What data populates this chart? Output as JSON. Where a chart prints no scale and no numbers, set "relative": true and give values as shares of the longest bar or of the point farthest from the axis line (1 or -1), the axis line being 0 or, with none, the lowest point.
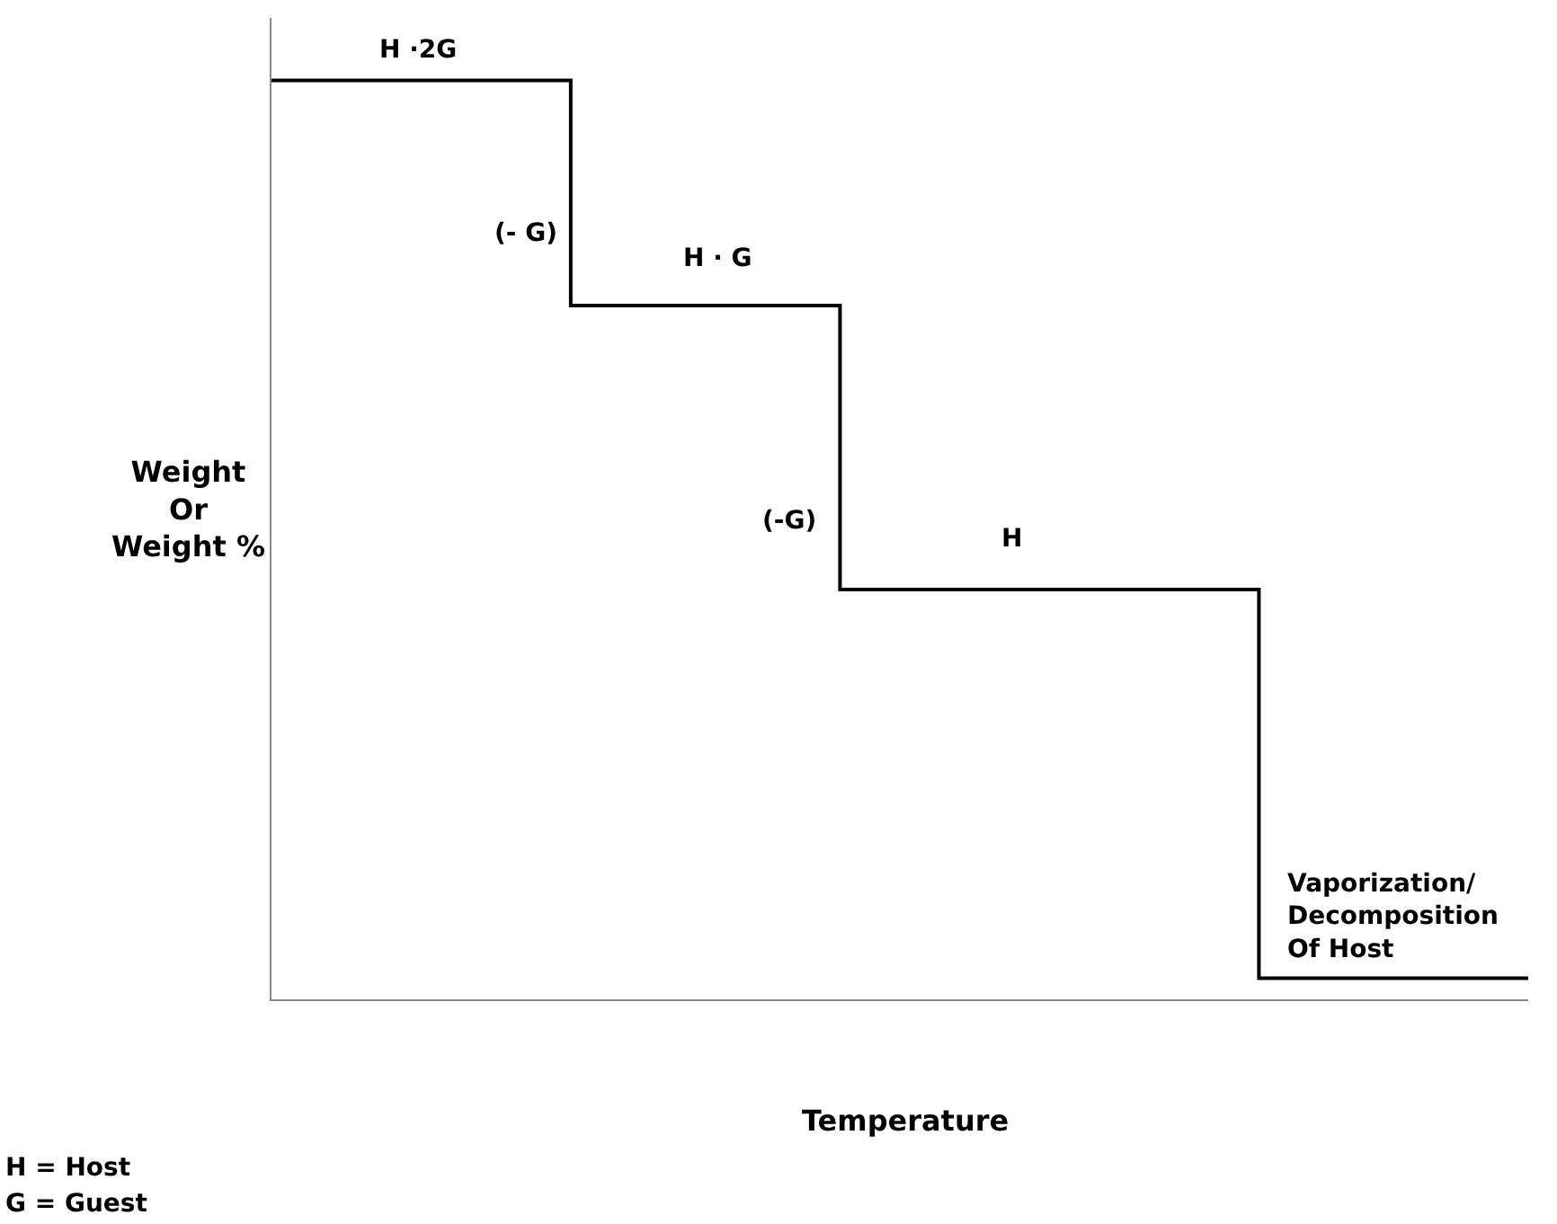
{
  "chart_data": {
    "type": "step",
    "relative": true,
    "xlabel": "Temperature",
    "ylabel": "Weight\nOr\nWeight %",
    "categories": [
      null,
      null,
      null,
      null,
      null,
      null,
      null,
      null,
      null,
      null,
      null,
      null,
      null,
      null,
      null,
      null,
      null,
      null,
      null,
      null,
      null,
      null,
      null,
      null,
      null,
      null,
      null,
      null,
      null,
      null,
      null,
      null,
      null,
      null,
      null,
      null,
      null,
      null,
      null,
      null,
      null,
      null,
      null
    ],
    "series": [
      {
        "color": "#000000",
        "values": [
          1,
          1,
          1,
          1,
          1,
          1,
          1,
          1,
          1,
          1,
          0.755,
          0.755,
          0.755,
          0.755,
          0.755,
          0.755,
          0.755,
          0.755,
          0.755,
          0.446,
          0.446,
          0.446,
          0.446,
          0.446,
          0.446,
          0.446,
          0.446,
          0.446,
          0.446,
          0.446,
          0.446,
          0.446,
          0.446,
          0.023,
          0.023,
          0.023,
          0.023,
          0.023,
          0.023,
          0.023,
          0.023,
          0.023,
          0.023
        ]
      }
    ],
    "annotations": [
      "H ·2G",
      "(- G)",
      "H · G",
      "(-G)",
      "H",
      "Vaporization/\nDecomposition\nOf Host",
      "H = Host",
      "G = Guest"
    ],
    "marker": "none",
    "line_style": "solid"
  }
}
